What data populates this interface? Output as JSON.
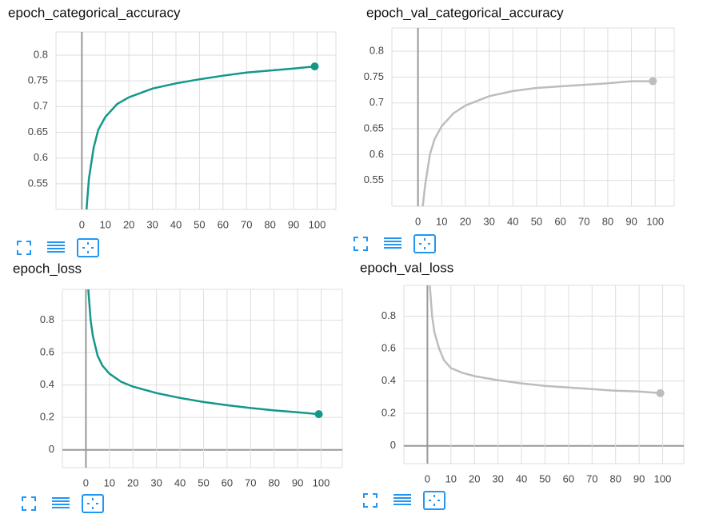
{
  "chart_data": [
    {
      "type": "line",
      "title": "epoch_categorical_accuracy",
      "color": "#12988a",
      "grid": true,
      "x": [
        2,
        3,
        5,
        7,
        10,
        15,
        20,
        30,
        40,
        50,
        60,
        70,
        80,
        90,
        99
      ],
      "values": [
        0.5,
        0.56,
        0.62,
        0.655,
        0.68,
        0.705,
        0.718,
        0.735,
        0.745,
        0.753,
        0.76,
        0.766,
        0.77,
        0.774,
        0.778
      ],
      "xlim": [
        -11,
        108
      ],
      "xticks": [
        0,
        10,
        20,
        30,
        40,
        50,
        60,
        70,
        80,
        90,
        100
      ],
      "ylim": [
        0.5,
        0.845
      ],
      "yticks": [
        0.55,
        0.6,
        0.65,
        0.7,
        0.75,
        0.8
      ]
    },
    {
      "type": "line",
      "title": "epoch_val_categorical_accuracy",
      "color": "#bdbdbd",
      "grid": true,
      "x": [
        2,
        3,
        5,
        7,
        10,
        15,
        20,
        30,
        40,
        50,
        60,
        70,
        80,
        90,
        99
      ],
      "values": [
        0.5,
        0.54,
        0.6,
        0.63,
        0.655,
        0.68,
        0.695,
        0.713,
        0.723,
        0.729,
        0.732,
        0.735,
        0.738,
        0.742,
        0.742
      ],
      "xlim": [
        -11,
        108
      ],
      "xticks": [
        0,
        10,
        20,
        30,
        40,
        50,
        60,
        70,
        80,
        90,
        100
      ],
      "ylim": [
        0.5,
        0.845
      ],
      "yticks": [
        0.55,
        0.6,
        0.65,
        0.7,
        0.75,
        0.8
      ]
    },
    {
      "type": "line",
      "title": "epoch_loss",
      "color": "#12988a",
      "grid": true,
      "x": [
        1,
        2,
        3,
        5,
        7,
        10,
        15,
        20,
        30,
        40,
        50,
        60,
        70,
        80,
        90,
        99
      ],
      "values": [
        0.99,
        0.8,
        0.7,
        0.58,
        0.52,
        0.47,
        0.42,
        0.39,
        0.35,
        0.32,
        0.295,
        0.275,
        0.258,
        0.243,
        0.232,
        0.22
      ],
      "xlim": [
        -10,
        109
      ],
      "xticks": [
        0,
        10,
        20,
        30,
        40,
        50,
        60,
        70,
        80,
        90,
        100
      ],
      "ylim": [
        -0.11,
        0.99
      ],
      "yticks": [
        0,
        0.2,
        0.4,
        0.6,
        0.8
      ]
    },
    {
      "type": "line",
      "title": "epoch_val_loss",
      "color": "#bdbdbd",
      "grid": true,
      "x": [
        1,
        2,
        3,
        5,
        7,
        10,
        15,
        20,
        30,
        40,
        50,
        60,
        70,
        80,
        90,
        99
      ],
      "values": [
        0.99,
        0.8,
        0.7,
        0.6,
        0.53,
        0.48,
        0.45,
        0.43,
        0.405,
        0.385,
        0.37,
        0.36,
        0.35,
        0.34,
        0.335,
        0.325
      ],
      "xlim": [
        -10,
        109
      ],
      "xticks": [
        0,
        10,
        20,
        30,
        40,
        50,
        60,
        70,
        80,
        90,
        100
      ],
      "ylim": [
        -0.11,
        0.99
      ],
      "yticks": [
        0,
        0.2,
        0.4,
        0.6,
        0.8
      ]
    }
  ]
}
